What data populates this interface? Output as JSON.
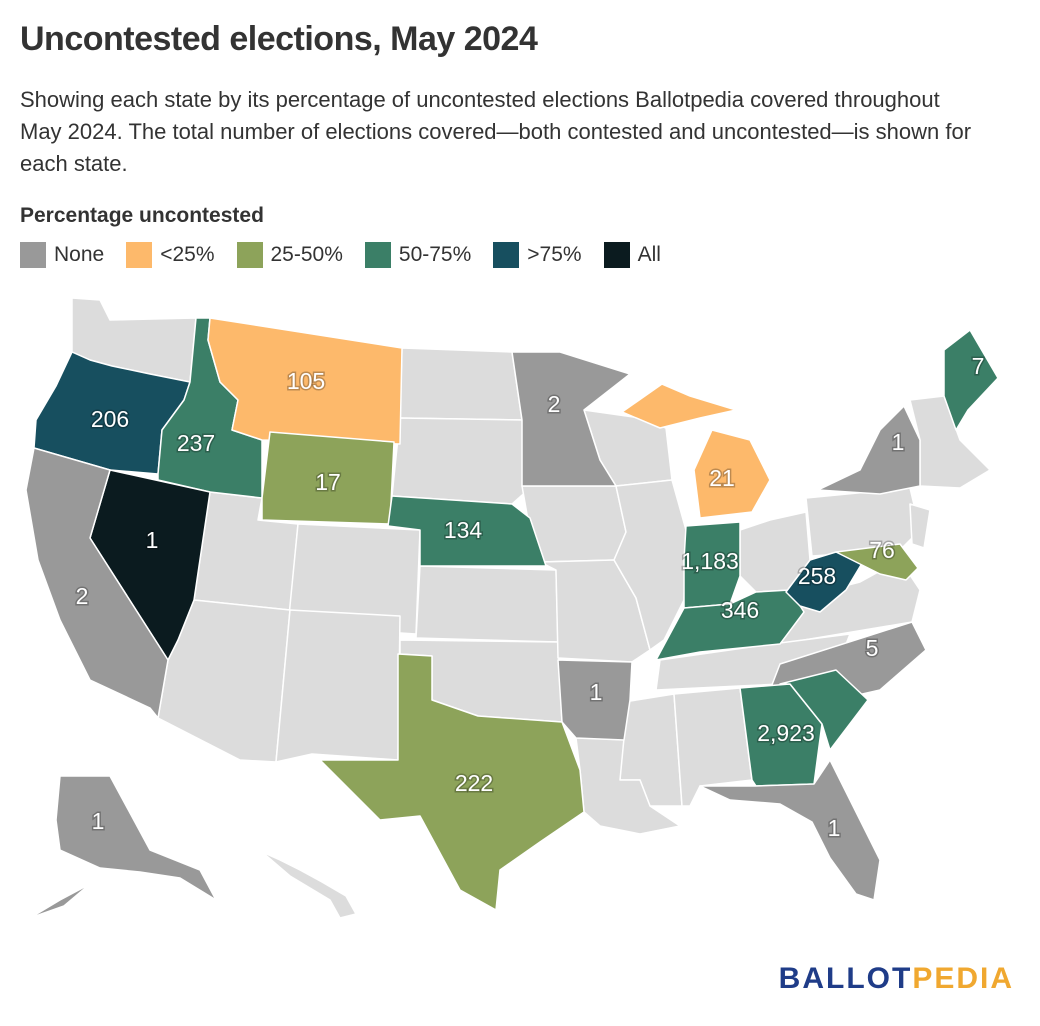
{
  "title": "Uncontested elections, May 2024",
  "subtitle": "Showing each state by its percentage of uncontested elections Ballotpedia covered throughout May 2024. The total number of elections covered—both contested and uncontested—is shown for each state.",
  "legend": {
    "title": "Percentage uncontested",
    "items": [
      {
        "label": "None",
        "color": "#999999"
      },
      {
        "label": "<25%",
        "color": "#fdb96b"
      },
      {
        "label": "25-50%",
        "color": "#8da35a"
      },
      {
        "label": "50-75%",
        "color": "#3b7f67"
      },
      {
        "label": ">75%",
        "color": "#174f5f"
      },
      {
        "label": "All",
        "color": "#0b1b1f"
      }
    ]
  },
  "colors": {
    "no_data": "#dcdcdc",
    "none": "#999999",
    "lt25": "#fdb96b",
    "p25_50": "#8da35a",
    "p50_75": "#3b7f67",
    "gt75": "#174f5f",
    "all": "#0b1b1f"
  },
  "states": {
    "oregon": "206",
    "idaho": "237",
    "montana": "105",
    "wyoming": "17",
    "nevada": "1",
    "california": "2",
    "nebraska": "134",
    "minnesota": "2",
    "michigan": "21",
    "indiana": "1,183",
    "kentucky": "346",
    "west_virginia": "258",
    "maryland": "76",
    "maine": "7",
    "new_york": "1",
    "north_carolina": "5",
    "arkansas": "1",
    "south_carolina_georgia": "2,923",
    "texas": "222",
    "alaska": "1",
    "florida": "1"
  },
  "brand": {
    "part1": "BALLOT",
    "part2": "PEDIA"
  }
}
